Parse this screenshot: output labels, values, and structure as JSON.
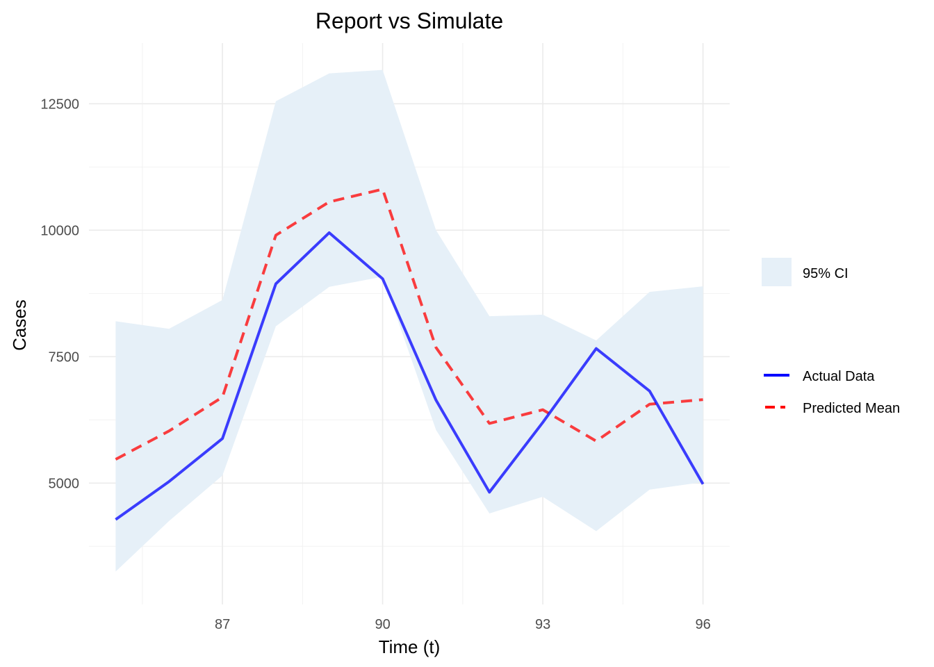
{
  "chart_data": {
    "type": "line",
    "title": "Report vs Simulate",
    "xlabel": "Time (t)",
    "ylabel": "Cases",
    "x": [
      85,
      86,
      87,
      88,
      89,
      90,
      91,
      92,
      93,
      94,
      95,
      96
    ],
    "x_ticks": [
      87,
      90,
      93,
      96
    ],
    "y_ticks": [
      5000,
      7500,
      10000,
      12500
    ],
    "xlim": [
      84.5,
      96.5
    ],
    "ylim": [
      2600,
      13700
    ],
    "grid": true,
    "legend_position": "right",
    "ribbon": {
      "name": "95% CI",
      "color": "#e6f0f8",
      "lower": [
        3250,
        4250,
        5150,
        8100,
        8880,
        9080,
        6050,
        4400,
        4730,
        4050,
        4870,
        5020
      ],
      "upper": [
        8200,
        8050,
        8620,
        12550,
        13100,
        13170,
        10000,
        8300,
        8330,
        7820,
        8780,
        8890
      ]
    },
    "series": [
      {
        "name": "Actual Data",
        "color": "#0000ff",
        "style": "solid",
        "values": [
          4280,
          5030,
          5880,
          8940,
          9950,
          9040,
          6640,
          4820,
          6200,
          7660,
          6820,
          4980
        ]
      },
      {
        "name": "Predicted Mean",
        "color": "#ff0000",
        "style": "dashed",
        "values": [
          5470,
          6030,
          6700,
          9900,
          10560,
          10810,
          7680,
          6180,
          6450,
          5830,
          6560,
          6650
        ]
      }
    ]
  }
}
